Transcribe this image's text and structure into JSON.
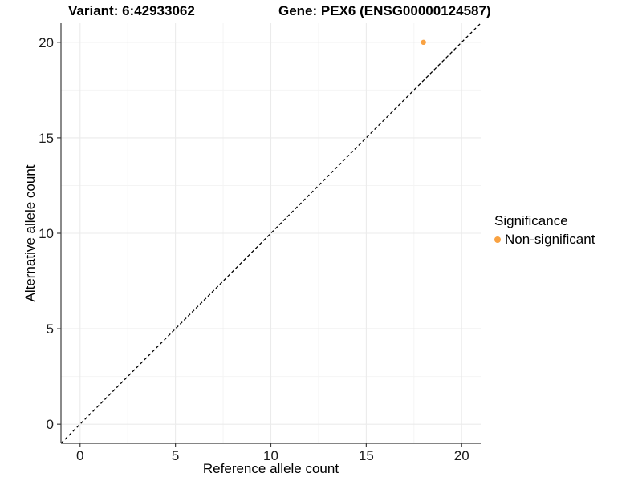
{
  "title": {
    "variant": "Variant: 6:42933062",
    "gene": "Gene: PEX6 (ENSG00000124587)"
  },
  "legend": {
    "title": "Significance",
    "items": [
      {
        "label": "Non-significant",
        "color": "#F9A242"
      }
    ]
  },
  "chart_data": {
    "type": "scatter",
    "title": "Variant: 6:42933062 / Gene: PEX6 (ENSG00000124587)",
    "xlabel": "Reference allele count",
    "ylabel": "Alternative allele count",
    "xlim": [
      -1,
      21
    ],
    "ylim": [
      -1,
      21
    ],
    "x_ticks": [
      0,
      5,
      10,
      15,
      20
    ],
    "y_ticks": [
      0,
      5,
      10,
      15,
      20
    ],
    "x_minor_ticks": [
      2.5,
      7.5,
      12.5,
      17.5
    ],
    "y_minor_ticks": [
      2.5,
      7.5,
      12.5,
      17.5
    ],
    "grid": true,
    "legend_position": "right",
    "series": [
      {
        "name": "Non-significant",
        "color": "#F9A242",
        "points": [
          [
            18,
            20
          ]
        ]
      }
    ],
    "reference_line": {
      "slope": 1,
      "intercept": 0,
      "from": [
        -1,
        -1
      ],
      "to": [
        21,
        21
      ],
      "style": "dashed",
      "color": "#000000"
    }
  },
  "colors": {
    "background": "#FFFFFF",
    "grid_major": "#EBEBEB",
    "grid_minor": "#F4F4F4",
    "axis": "#3C3C3C",
    "tick_label": "#1A1A1A"
  }
}
